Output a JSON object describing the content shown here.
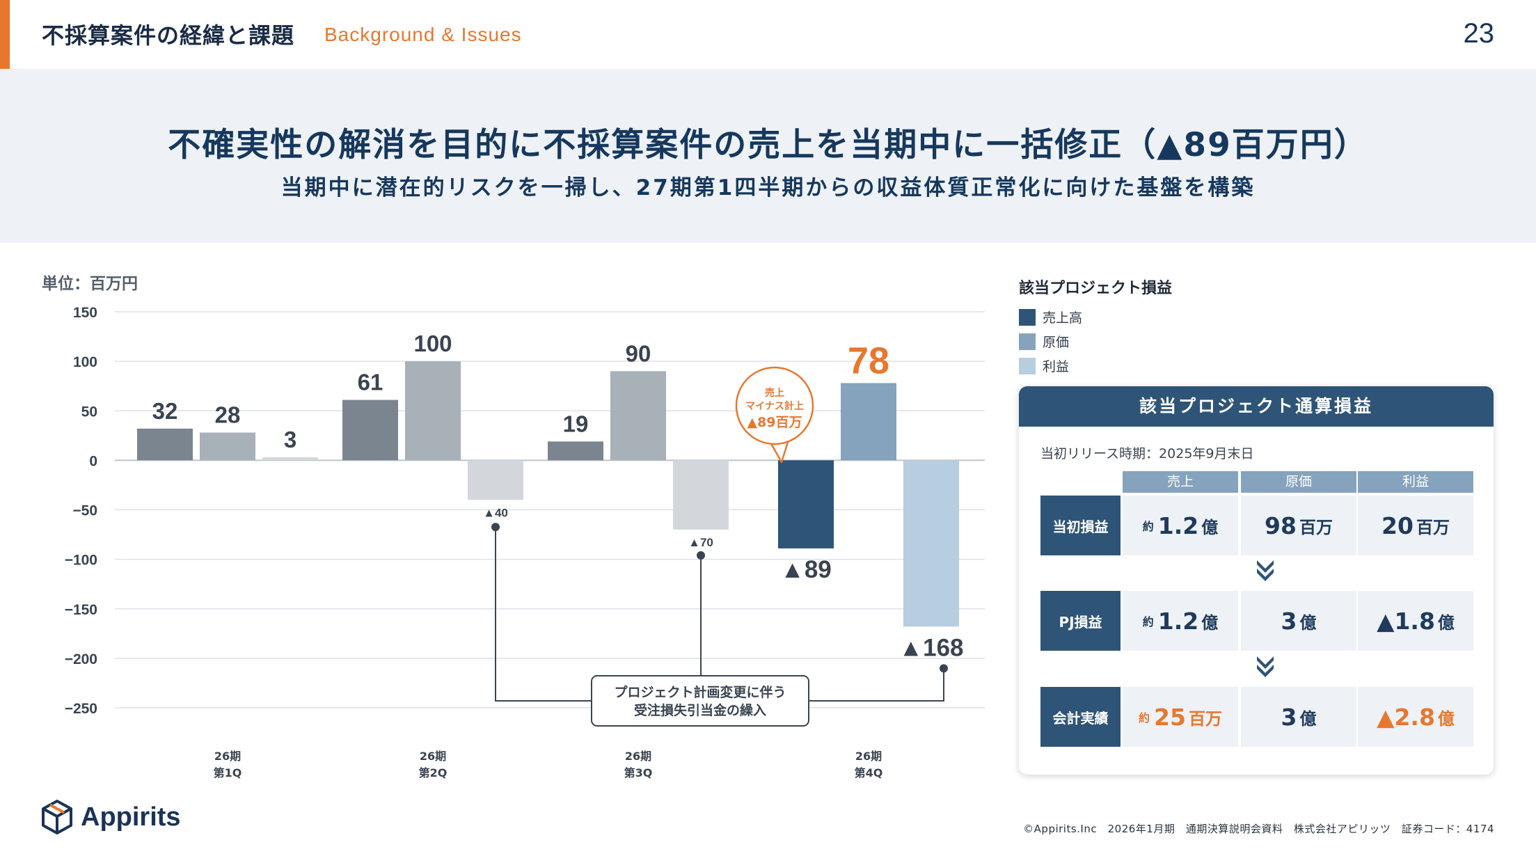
{
  "header": {
    "title": "不採算案件の経緯と課題",
    "subtitle": "Background & Issues",
    "page_number": "23"
  },
  "banner": {
    "headline": "不確実性の解消を目的に不採算案件の売上を当期中に一括修正（▲89百万円）",
    "subhead": "当期中に潜在的リスクを一掃し、27期第1四半期からの収益体質正常化に向けた基盤を構築"
  },
  "unit_label": "単位：百万円",
  "legend": {
    "title": "該当プロジェクト損益",
    "items": [
      {
        "label": "売上高",
        "color": "#2e5478"
      },
      {
        "label": "原価",
        "color": "#86a3bd"
      },
      {
        "label": "利益",
        "color": "#b7cde0"
      }
    ]
  },
  "chart_data": {
    "type": "bar",
    "ylim": [
      -250,
      150
    ],
    "yticks": [
      150,
      100,
      50,
      0,
      -50,
      -100,
      -150,
      -200,
      -250
    ],
    "ytick_labels": [
      "150",
      "100",
      "50",
      "0",
      "−50",
      "−100",
      "−150",
      "−200",
      "−250"
    ],
    "grid": true,
    "categories": [
      {
        "line1": "26期",
        "line2": "第1Q"
      },
      {
        "line1": "26期",
        "line2": "第2Q"
      },
      {
        "line1": "26期",
        "line2": "第3Q"
      },
      {
        "line1": "26期",
        "line2": "第4Q"
      }
    ],
    "groups": [
      {
        "bars": [
          {
            "value": 32,
            "label": "32",
            "color": "#7b8590"
          },
          {
            "value": 28,
            "label": "28",
            "color": "#a8b0b8"
          },
          {
            "value": 3,
            "label": "3",
            "color": "#d3d7db"
          }
        ]
      },
      {
        "bars": [
          {
            "value": 61,
            "label": "61",
            "color": "#7b8590"
          },
          {
            "value": 100,
            "label": "100",
            "color": "#a8b0b8"
          },
          {
            "value": -40,
            "label": "▲40",
            "color": "#d3d7db"
          }
        ]
      },
      {
        "bars": [
          {
            "value": 19,
            "label": "19",
            "color": "#7b8590"
          },
          {
            "value": 90,
            "label": "90",
            "color": "#a8b0b8"
          },
          {
            "value": -70,
            "label": "▲70",
            "color": "#d3d7db"
          }
        ]
      },
      {
        "bars": [
          {
            "value": -89,
            "label": "▲89",
            "color": "#2e5478"
          },
          {
            "value": 78,
            "label": "78",
            "color": "#86a3bd",
            "highlight_color": "#e8772e"
          },
          {
            "value": -168,
            "label": "▲168",
            "color": "#b7cde0"
          }
        ]
      }
    ],
    "bubble_annotation": [
      "売上",
      "マイナス計上",
      "▲89百万"
    ],
    "box_annotation": [
      "プロジェクト計画変更に伴う",
      "受注損失引当金の繰入"
    ]
  },
  "card": {
    "title": "該当プロジェクト通算損益",
    "note": "当初リリース時期：2025年9月末日",
    "columns": [
      "売上",
      "原価",
      "利益"
    ],
    "rows": [
      {
        "label": "当初損益",
        "cells": [
          {
            "pre": "約",
            "big": "1.2",
            "suf": "億",
            "orange": false
          },
          {
            "pre": "",
            "big": "98",
            "suf": "百万",
            "orange": false
          },
          {
            "pre": "",
            "big": "20",
            "suf": "百万",
            "orange": false
          }
        ]
      },
      {
        "label": "PJ損益",
        "cells": [
          {
            "pre": "約",
            "big": "1.2",
            "suf": "億",
            "orange": false
          },
          {
            "pre": "",
            "big": "3",
            "suf": "億",
            "orange": false
          },
          {
            "pre": "",
            "big": "▲1.8",
            "suf": "億",
            "orange": false
          }
        ]
      },
      {
        "label": "会計実績",
        "cells": [
          {
            "pre": "約",
            "big": "25",
            "suf": "百万",
            "orange": true
          },
          {
            "pre": "",
            "big": "3",
            "suf": "億",
            "orange": false
          },
          {
            "pre": "",
            "big": "▲2.8",
            "suf": "億",
            "orange": true
          }
        ]
      }
    ]
  },
  "footer": {
    "logo_text": "Appirits",
    "copyright": "©Appirits.Inc　2026年1月期　通期決算説明会資料　株式会社アピリッツ　証券コード：4174"
  },
  "colors": {
    "accent": "#e8772e",
    "navy": "#2e5478",
    "dark_text": "#16385e"
  }
}
